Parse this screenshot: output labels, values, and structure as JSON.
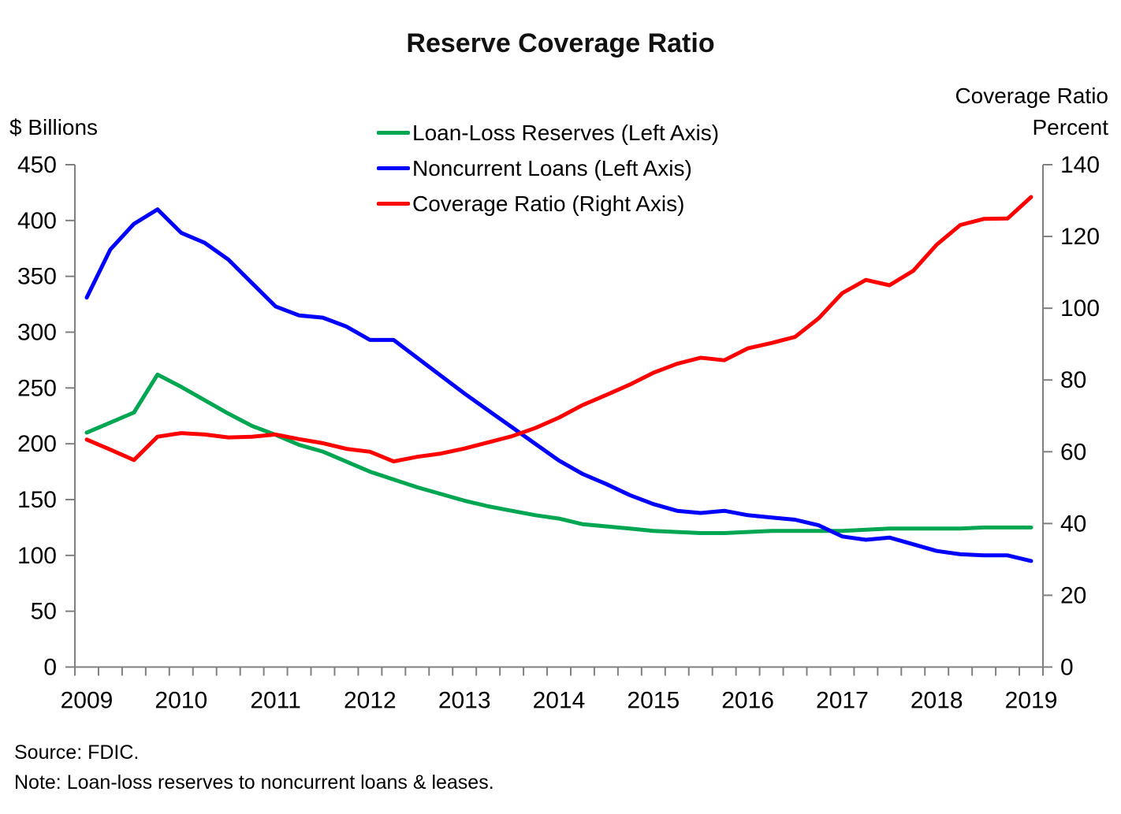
{
  "chart_data": {
    "type": "line",
    "title": "Reserve Coverage Ratio",
    "frequency": "quarterly",
    "x_start": "2009 Q1",
    "x_end": "2019 Q1",
    "x_tick_labels": [
      "2009",
      "2010",
      "2011",
      "2012",
      "2013",
      "2014",
      "2015",
      "2016",
      "2017",
      "2018",
      "2019"
    ],
    "left_axis": {
      "unit_label": "$ Billions",
      "min": 0,
      "max": 450,
      "tick_step": 50,
      "tick_labels": [
        "0",
        "50",
        "100",
        "150",
        "200",
        "250",
        "300",
        "350",
        "400",
        "450"
      ]
    },
    "right_axis": {
      "title_line1": "Coverage Ratio",
      "title_line2": "Percent",
      "min": 0,
      "max": 140,
      "tick_step": 20,
      "tick_labels": [
        "0",
        "20",
        "40",
        "60",
        "80",
        "100",
        "120",
        "140"
      ]
    },
    "legend_position": "top-center",
    "grid": false,
    "series": [
      {
        "id": "loan-loss-reserves",
        "name": "Loan-Loss Reserves (Left Axis)",
        "axis": "left",
        "color": "#00A651",
        "values": [
          210,
          219,
          228,
          262,
          251,
          239,
          227,
          216,
          208,
          199,
          193,
          184,
          175,
          168,
          161,
          155,
          149,
          144,
          140,
          136,
          133,
          128,
          126,
          124,
          122,
          121,
          120,
          120,
          121,
          122,
          122,
          122,
          122,
          123,
          124,
          124,
          124,
          124,
          125,
          125,
          125
        ]
      },
      {
        "id": "noncurrent-loans",
        "name": "Noncurrent Loans (Left Axis)",
        "axis": "left",
        "color": "#0000FF",
        "values": [
          331,
          374,
          397,
          410,
          389,
          380,
          365,
          344,
          323,
          315,
          313,
          305,
          293,
          293,
          277,
          261,
          245,
          230,
          215,
          200,
          185,
          173,
          164,
          154,
          146,
          140,
          138,
          140,
          136,
          134,
          132,
          127,
          117,
          114,
          116,
          110,
          104,
          101,
          100,
          100,
          95
        ]
      },
      {
        "id": "coverage-ratio",
        "name": "Coverage Ratio (Right Axis)",
        "axis": "right",
        "color": "#FF0000",
        "values": [
          63.4,
          60.6,
          57.7,
          64.2,
          65.2,
          64.8,
          64.0,
          64.2,
          64.8,
          63.5,
          62.4,
          60.8,
          60.0,
          57.3,
          58.6,
          59.5,
          60.9,
          62.6,
          64.3,
          66.6,
          69.5,
          73.0,
          75.8,
          78.7,
          82.0,
          84.5,
          86.2,
          85.5,
          88.8,
          90.3,
          92.0,
          97.2,
          104.2,
          107.9,
          106.4,
          110.4,
          117.7,
          123.2,
          124.9,
          125.0,
          131.0
        ]
      }
    ],
    "source": "Source: FDIC.",
    "note": "Note: Loan-loss reserves to noncurrent loans & leases."
  }
}
